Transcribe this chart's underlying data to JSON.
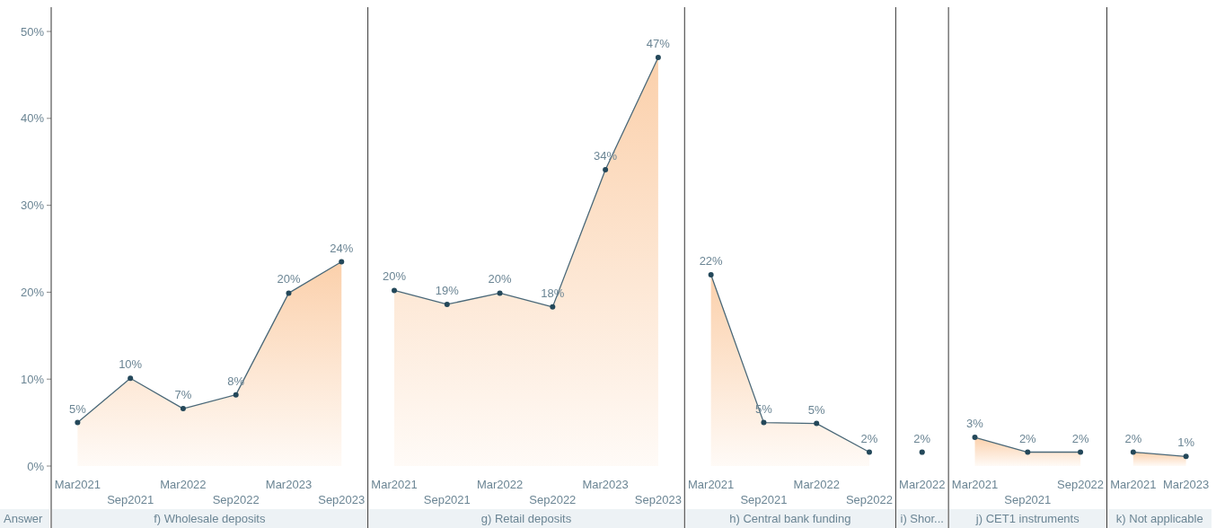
{
  "chart_data": [
    {
      "type": "area",
      "xlabel": "f) Wholesale deposits",
      "annotations": [
        "Answer"
      ],
      "categories": [
        "Mar2021",
        "Sep2021",
        "Mar2022",
        "Sep2022",
        "Mar2023",
        "Sep2023"
      ],
      "series": [
        {
          "color": "#fbd0ab",
          "values": [
            5.0,
            10.1,
            6.6,
            8.2,
            19.9,
            23.5
          ]
        }
      ],
      "value_labels": [
        "5%",
        "10%",
        "7%",
        "8%",
        "20%",
        "24%"
      ],
      "ylim": [
        0,
        53
      ],
      "yticks": [
        {
          "value": 0,
          "label": "0%"
        },
        {
          "value": 10,
          "label": "10%"
        },
        {
          "value": 20,
          "label": "20%"
        },
        {
          "value": 30,
          "label": "30%"
        },
        {
          "value": 40,
          "label": "40%"
        },
        {
          "value": 50,
          "label": "50%"
        }
      ],
      "marker": "circle"
    },
    {
      "type": "area",
      "xlabel": "g) Retail deposits",
      "categories": [
        "Mar2021",
        "Sep2021",
        "Mar2022",
        "Sep2022",
        "Mar2023",
        "Sep2023"
      ],
      "series": [
        {
          "color": "#fbd0ab",
          "values": [
            20.2,
            18.6,
            19.9,
            18.3,
            34.1,
            47.0
          ]
        }
      ],
      "value_labels": [
        "20%",
        "19%",
        "20%",
        "18%",
        "34%",
        "47%"
      ],
      "ylim": [
        0,
        53
      ],
      "tick_labels": "x",
      "marker": "circle"
    },
    {
      "type": "area",
      "xlabel": "h) Central bank funding",
      "categories": [
        "Mar2021",
        "Sep2021",
        "Mar2022",
        "Sep2022"
      ],
      "series": [
        {
          "color": "#fbd0ab",
          "values": [
            22.0,
            5.0,
            4.9,
            1.6
          ]
        }
      ],
      "value_labels": [
        "22%",
        "5%",
        "5%",
        "2%"
      ],
      "ylim": [
        0,
        53
      ],
      "tick_labels": "x",
      "marker": "circle"
    },
    {
      "type": "scatter",
      "xlabel": "i) Shor...",
      "categories": [
        "Mar2022"
      ],
      "series": [
        {
          "color": "#24485a",
          "values": [
            1.6
          ]
        }
      ],
      "value_labels": [
        "2%"
      ],
      "ylim": [
        0,
        53
      ],
      "tick_labels": "x",
      "marker": "circle"
    },
    {
      "type": "area",
      "xlabel": "j) CET1 instruments",
      "categories": [
        "Mar2021",
        "Sep2021",
        "Sep2022"
      ],
      "series": [
        {
          "color": "#fbd0ab",
          "values": [
            3.3,
            1.6,
            1.6
          ]
        }
      ],
      "value_labels": [
        "3%",
        "2%",
        "2%"
      ],
      "ylim": [
        0,
        53
      ],
      "tick_labels": "x",
      "marker": "circle"
    },
    {
      "type": "area",
      "xlabel": "k) Not applicable",
      "categories": [
        "Mar2021",
        "Mar2023"
      ],
      "series": [
        {
          "color": "#fbd0ab",
          "values": [
            1.6,
            1.1
          ]
        }
      ],
      "value_labels": [
        "2%",
        "1%"
      ],
      "ylim": [
        0,
        53
      ],
      "tick_labels": "x",
      "marker": "circle"
    }
  ]
}
